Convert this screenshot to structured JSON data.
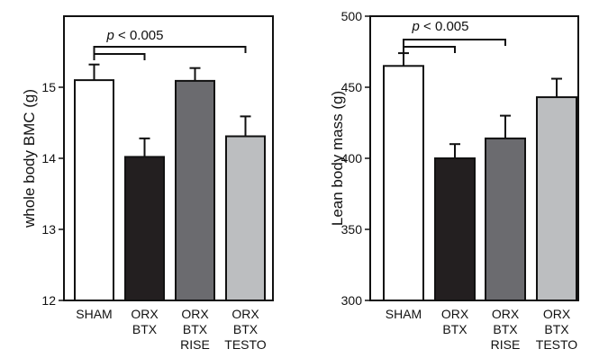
{
  "chart_data": [
    {
      "type": "bar",
      "ylabel": "whole body BMC (g)",
      "ylim": [
        12,
        16
      ],
      "yticks": [
        12,
        13,
        14,
        15
      ],
      "categories": [
        [
          "SHAM"
        ],
        [
          "ORX",
          "BTX"
        ],
        [
          "ORX",
          "BTX",
          "RISE"
        ],
        [
          "ORX",
          "BTX",
          "TESTO"
        ]
      ],
      "values": [
        15.1,
        14.02,
        15.09,
        14.31
      ],
      "errors": [
        0.22,
        0.26,
        0.18,
        0.28
      ],
      "colors": [
        "#ffffff",
        "#231f20",
        "#6b6b6f",
        "#bcbec0"
      ],
      "annotation": "p < 0.005",
      "brackets": [
        [
          0,
          1
        ],
        [
          0,
          3
        ]
      ]
    },
    {
      "type": "bar",
      "ylabel": "Lean body mass (g)",
      "ylim": [
        300,
        500
      ],
      "yticks": [
        300,
        350,
        400,
        450,
        500
      ],
      "categories": [
        [
          "SHAM"
        ],
        [
          "ORX",
          "BTX"
        ],
        [
          "ORX",
          "BTX",
          "RISE"
        ],
        [
          "ORX",
          "BTX",
          "TESTO"
        ]
      ],
      "values": [
        465,
        400,
        414,
        443
      ],
      "errors": [
        9,
        10,
        16,
        13
      ],
      "colors": [
        "#ffffff",
        "#231f20",
        "#6b6b6f",
        "#bcbec0"
      ],
      "annotation": "p < 0.005",
      "brackets": [
        [
          0,
          1
        ],
        [
          0,
          2
        ]
      ]
    }
  ]
}
